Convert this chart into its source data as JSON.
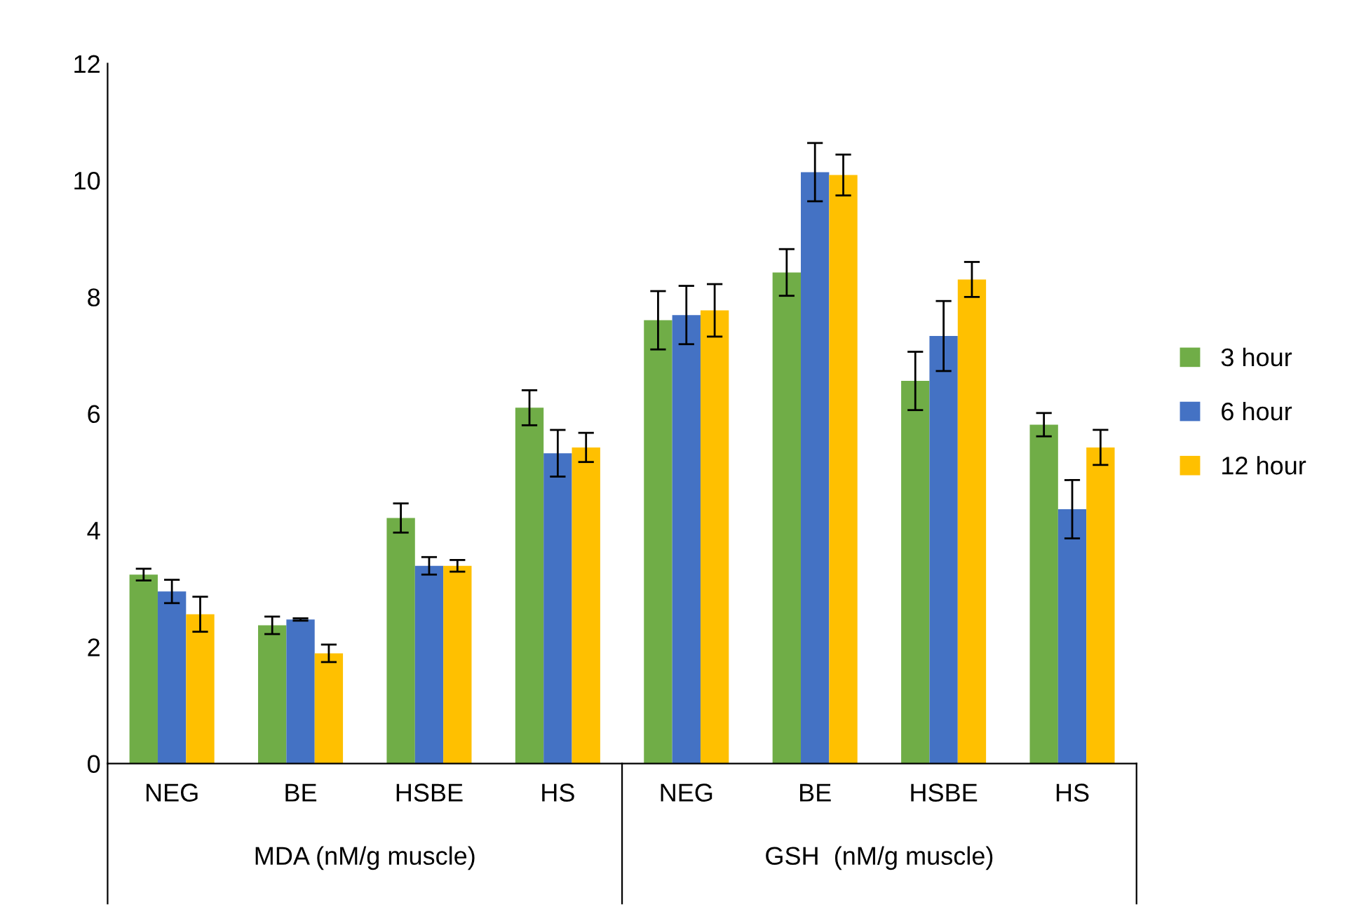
{
  "chart_data": {
    "type": "bar",
    "categories": [
      "NEG",
      "BE",
      "HSBE",
      "HS",
      "NEG",
      "BE",
      "HSBE",
      "HS"
    ],
    "series": [
      {
        "name": "3 hour",
        "color": "#70ad47",
        "values": [
          3.24,
          2.37,
          4.21,
          6.1,
          7.6,
          8.42,
          6.56,
          5.81
        ],
        "errors": [
          0.1,
          0.15,
          0.25,
          0.3,
          0.5,
          0.4,
          0.5,
          0.2
        ]
      },
      {
        "name": "6 hour",
        "color": "#4472c4",
        "values": [
          2.95,
          2.47,
          3.39,
          5.32,
          7.69,
          10.14,
          7.33,
          4.36
        ],
        "errors": [
          0.2,
          0.02,
          0.15,
          0.4,
          0.5,
          0.5,
          0.6,
          0.5
        ]
      },
      {
        "name": "12 hour",
        "color": "#ffc000",
        "values": [
          2.56,
          1.89,
          3.39,
          5.42,
          7.77,
          10.09,
          8.3,
          5.42
        ],
        "errors": [
          0.3,
          0.15,
          0.1,
          0.25,
          0.45,
          0.35,
          0.3,
          0.3
        ]
      }
    ],
    "annotations": [
      "MDA (nM/g muscle)",
      "GSH  (nM/g muscle)"
    ],
    "ylim": [
      0,
      12
    ],
    "yticks": [
      0,
      2,
      4,
      6,
      8,
      10,
      12
    ],
    "grid": false,
    "legend": "right"
  }
}
